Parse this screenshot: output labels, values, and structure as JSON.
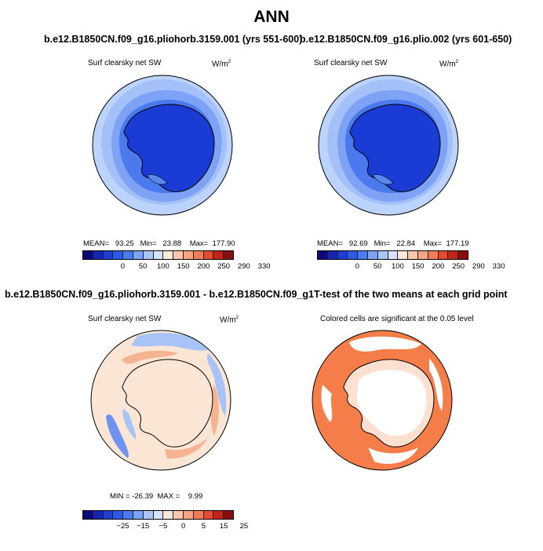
{
  "title": "ANN",
  "panels": [
    {
      "title": "b.e12.B1850CN.f09_g16.pliohorb.3159.001 (yrs 551-600)",
      "variable": "Surf clearsky net SW",
      "units_base": "W/m",
      "units_exp": "2",
      "stats": "MEAN=   93.25   Min=   23.88    Max=  177.90"
    },
    {
      "title": "b.e12.B1850CN.f09_g16.plio.002 (yrs 601-650)",
      "variable": "Surf clearsky net SW",
      "units_base": "W/m",
      "units_exp": "2",
      "stats": "MEAN=   92.69   Min=   22.84    Max=  177.19"
    },
    {
      "title": "b.e12.B1850CN.f09_g16.pliohorb.3159.001 - b.e12.B1850CN.f09_g16.plio.002",
      "variable": "Surf clearsky net SW",
      "units_base": "W/m",
      "units_exp": "2",
      "stats": "MIN = -26.39  MAX =    9.99"
    },
    {
      "title": "T-test of the two means at each grid point",
      "variable": "Colored cells are significant at the 0.05 level"
    }
  ],
  "colorbars": {
    "absolute": {
      "colors": [
        "#0a0a7a",
        "#1626b0",
        "#1e3fd6",
        "#2f5ae8",
        "#4a7cf0",
        "#7ba2f5",
        "#a9c5fa",
        "#d5e4fc",
        "#fde7d8",
        "#fbc7ad",
        "#f7a482",
        "#f27d58",
        "#e54b2c",
        "#c4241a",
        "#8a0d0d"
      ],
      "ticks": [
        "0",
        "50",
        "100",
        "150",
        "200",
        "250",
        "290",
        "330"
      ]
    },
    "difference": {
      "colors": [
        "#0a0a7a",
        "#1626b0",
        "#1e3fd6",
        "#2f5ae8",
        "#4a7cf0",
        "#7ba2f5",
        "#a9c5fa",
        "#d5e4fc",
        "#fde7d8",
        "#fbc7ad",
        "#f7a482",
        "#f27d58",
        "#e54b2c",
        "#c4241a",
        "#8a0d0d"
      ],
      "ticks": [
        "−25",
        "−15",
        "−5",
        "0",
        "5",
        "15",
        "25"
      ]
    }
  },
  "map_colors": {
    "ocean_far": "#bcd4fb",
    "ocean_mid": "#8fb1f7",
    "ocean_near": "#5a88f0",
    "ocean_ice": "#3664e6",
    "antarctica": "#1a3cd4",
    "diff_background": "#fbe6d6",
    "diff_positive": "#f6b391",
    "diff_negative": "#a8c4f7",
    "diff_strong_negative": "#6d93ef",
    "significant": "#f47d4a"
  }
}
